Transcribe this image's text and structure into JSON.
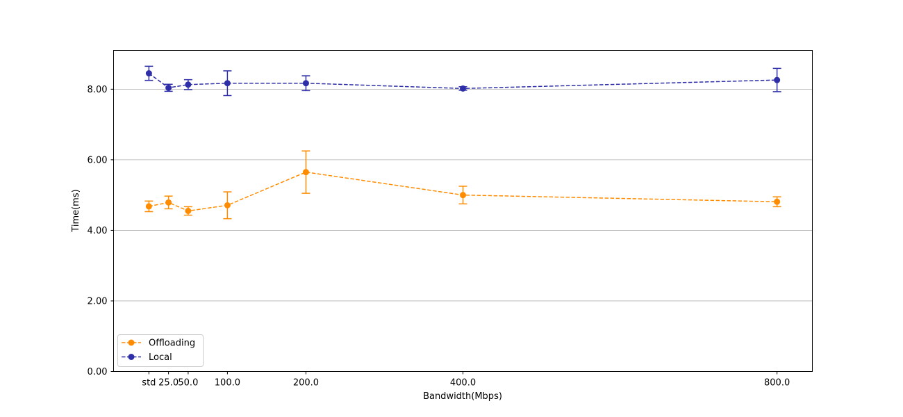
{
  "chart_data": {
    "type": "line",
    "title": "",
    "xlabel": "Bandwidth(Mbps)",
    "ylabel": "Time(ms)",
    "x_tick_labels": [
      "std",
      "25.0",
      "50.0",
      "100.0",
      "200.0",
      "400.0",
      "800.0"
    ],
    "x_values": [
      0,
      25,
      50,
      100,
      200,
      400,
      800
    ],
    "xlim": [
      -45,
      845
    ],
    "ylim": [
      0,
      9.1
    ],
    "y_ticks": [
      0,
      2,
      4,
      6,
      8
    ],
    "y_tick_labels": [
      "0.00",
      "2.00",
      "4.00",
      "6.00",
      "8.00"
    ],
    "grid": "horizontal",
    "legend_position": "lower-left",
    "series": [
      {
        "name": "Offloading",
        "color": "#ff8c00",
        "values": [
          4.68,
          4.79,
          4.55,
          4.71,
          5.65,
          5.0,
          4.81
        ],
        "errors": [
          0.15,
          0.18,
          0.12,
          0.38,
          0.6,
          0.25,
          0.14
        ]
      },
      {
        "name": "Local",
        "color": "#2d2ea8",
        "values": [
          8.45,
          8.04,
          8.13,
          8.17,
          8.17,
          8.02,
          8.26
        ],
        "errors": [
          0.2,
          0.1,
          0.14,
          0.35,
          0.21,
          0.05,
          0.33
        ]
      }
    ]
  }
}
